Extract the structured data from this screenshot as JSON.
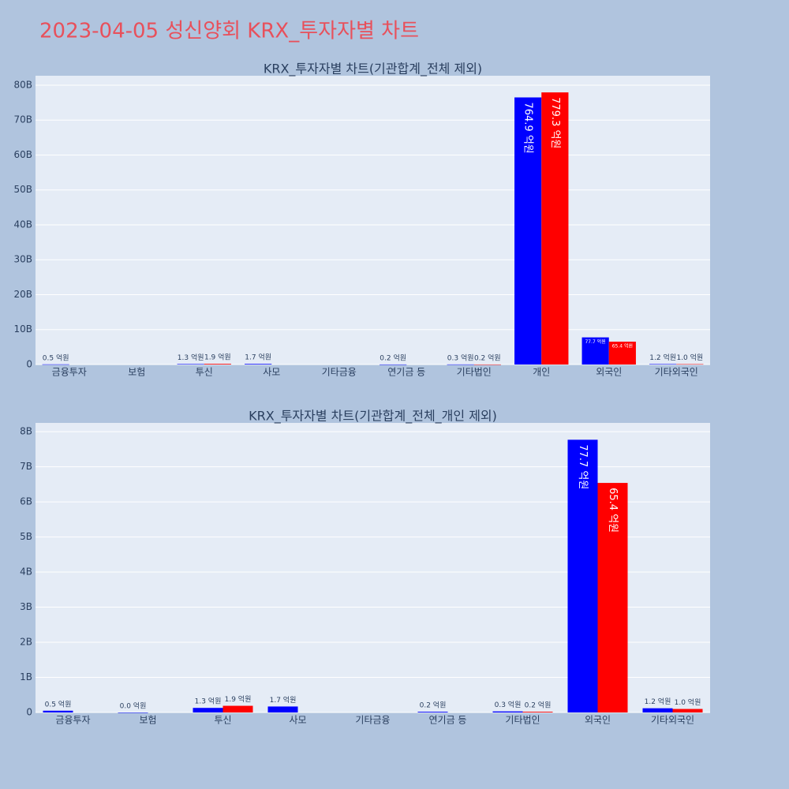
{
  "title": "2023-04-05 성신양회 KRX_투자자별 차트",
  "chart_data": [
    {
      "type": "bar",
      "title": "KRX_투자자별 차트(기관합계_전체 제외)",
      "categories": [
        "금융투자",
        "보험",
        "투신",
        "사모",
        "기타금융",
        "연기금 등",
        "기타법인",
        "개인",
        "외국인",
        "기타외국인"
      ],
      "series": [
        {
          "color": "#0000ff",
          "values": [
            50000000,
            null,
            130000000,
            170000000,
            null,
            20000000,
            30000000,
            76490000000,
            7770000000,
            120000000
          ],
          "value_labels": [
            "0.5 억원",
            null,
            "1.3 억원",
            "1.7 억원",
            null,
            "0.2 억원",
            "0.3 억원",
            "764.9 억원",
            "77.7 억원",
            "1.2 억원"
          ]
        },
        {
          "color": "#ff0000",
          "values": [
            null,
            null,
            190000000,
            null,
            null,
            null,
            20000000,
            77930000000,
            6540000000,
            100000000
          ],
          "value_labels": [
            null,
            null,
            "1.9 억원",
            null,
            null,
            null,
            "0.2 억원",
            "779.3 억원",
            "65.4 억원",
            "1.0 억원"
          ]
        }
      ],
      "ylim": [
        0,
        82700000000
      ],
      "yticks": [
        0,
        {
          "value": 10000000000,
          "label": "10B"
        },
        {
          "value": 20000000000,
          "label": "20B"
        },
        {
          "value": 30000000000,
          "label": "30B"
        },
        {
          "value": 40000000000,
          "label": "40B"
        },
        {
          "value": 50000000000,
          "label": "50B"
        },
        {
          "value": 60000000000,
          "label": "60B"
        },
        {
          "value": 70000000000,
          "label": "70B"
        },
        {
          "value": 80000000000,
          "label": "80B"
        }
      ],
      "grid": true
    },
    {
      "type": "bar",
      "title": "KRX_투자자별 차트(기관합계_전체_개인 제외)",
      "categories": [
        "금융투자",
        "보험",
        "투신",
        "사모",
        "기타금융",
        "연기금 등",
        "기타법인",
        "외국인",
        "기타외국인"
      ],
      "series": [
        {
          "color": "#0000ff",
          "values": [
            50000000,
            0,
            130000000,
            170000000,
            null,
            20000000,
            30000000,
            7770000000,
            120000000
          ],
          "value_labels": [
            "0.5 억원",
            "0.0 억원",
            "1.3 억원",
            "1.7 억원",
            null,
            "0.2 억원",
            "0.3 억원",
            "77.7 억원",
            "1.2 억원"
          ]
        },
        {
          "color": "#ff0000",
          "values": [
            null,
            null,
            190000000,
            null,
            null,
            null,
            20000000,
            6540000000,
            100000000
          ],
          "value_labels": [
            null,
            null,
            "1.9 억원",
            null,
            null,
            null,
            "0.2 억원",
            "65.4 억원",
            "1.0 억원"
          ]
        }
      ],
      "ylim": [
        0,
        8250000000
      ],
      "yticks": [
        0,
        {
          "value": 1000000000,
          "label": "1B"
        },
        {
          "value": 2000000000,
          "label": "2B"
        },
        {
          "value": 3000000000,
          "label": "3B"
        },
        {
          "value": 4000000000,
          "label": "4B"
        },
        {
          "value": 5000000000,
          "label": "5B"
        },
        {
          "value": 6000000000,
          "label": "6B"
        },
        {
          "value": 7000000000,
          "label": "7B"
        },
        {
          "value": 8000000000,
          "label": "8B"
        }
      ],
      "grid": true
    }
  ]
}
